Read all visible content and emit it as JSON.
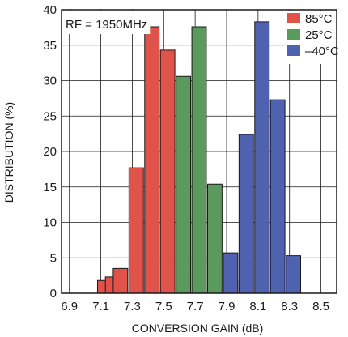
{
  "chart_data": {
    "type": "bar",
    "xlabel": "CONVERSION GAIN (dB)",
    "ylabel": "DISTRIBUTION (%)",
    "annotation": "RF = 1950MHz",
    "xlim": [
      6.85,
      8.6
    ],
    "ylim": [
      0,
      40
    ],
    "bin_width": 0.05,
    "x_ticks": [
      "6.9",
      "7.1",
      "7.3",
      "7.5",
      "7.7",
      "7.9",
      "8.1",
      "8.3",
      "8.5"
    ],
    "y_ticks": [
      "0",
      "5",
      "10",
      "15",
      "20",
      "25",
      "30",
      "35",
      "40"
    ],
    "grid": true,
    "legend_position": "top-right",
    "series": [
      {
        "name": "85°C",
        "color": "#e0534a",
        "bins": [
          {
            "x": 7.125,
            "y": 1.8
          },
          {
            "x": 7.175,
            "y": 2.3
          },
          {
            "x": 7.225,
            "y": 3.5
          },
          {
            "x": 7.325,
            "y": 17.7
          },
          {
            "x": 7.425,
            "y": 37.6
          },
          {
            "x": 7.525,
            "y": 34.3
          },
          {
            "x": 7.625,
            "y": 3.2
          }
        ]
      },
      {
        "name": "25°C",
        "color": "#5a9a5c",
        "bins": [
          {
            "x": 7.625,
            "y": 30.6
          },
          {
            "x": 7.725,
            "y": 37.6
          },
          {
            "x": 7.825,
            "y": 15.4
          },
          {
            "x": 7.925,
            "y": 1.7
          }
        ]
      },
      {
        "name": "–40°C",
        "color": "#4f62b0",
        "bins": [
          {
            "x": 7.925,
            "y": 5.7
          },
          {
            "x": 8.025,
            "y": 22.4
          },
          {
            "x": 8.125,
            "y": 38.3
          },
          {
            "x": 8.225,
            "y": 27.3
          },
          {
            "x": 8.325,
            "y": 5.3
          }
        ]
      }
    ]
  }
}
